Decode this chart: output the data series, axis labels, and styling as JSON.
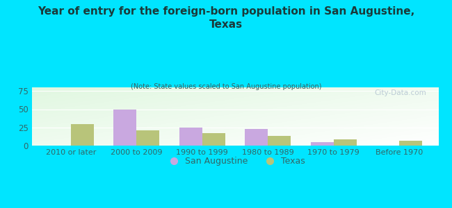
{
  "title": "Year of entry for the foreign-born population in San Augustine,\nTexas",
  "subtitle": "(Note: State values scaled to San Augustine population)",
  "categories": [
    "2010 or later",
    "2000 to 2009",
    "1990 to 1999",
    "1980 to 1989",
    "1970 to 1979",
    "Before 1970"
  ],
  "san_augustine_values": [
    0,
    50,
    25,
    23,
    5,
    0
  ],
  "texas_values": [
    30,
    21,
    17,
    13,
    9,
    7
  ],
  "san_augustine_color": "#c9a8e0",
  "texas_color": "#b8c47a",
  "background_color": "#00e5ff",
  "title_color": "#1a3a3a",
  "subtitle_color": "#3a6060",
  "axis_label_color": "#336666",
  "ylim": [
    0,
    80
  ],
  "yticks": [
    0,
    25,
    50,
    75
  ],
  "watermark": "City-Data.com",
  "legend_san_augustine": "San Augustine",
  "legend_texas": "Texas"
}
